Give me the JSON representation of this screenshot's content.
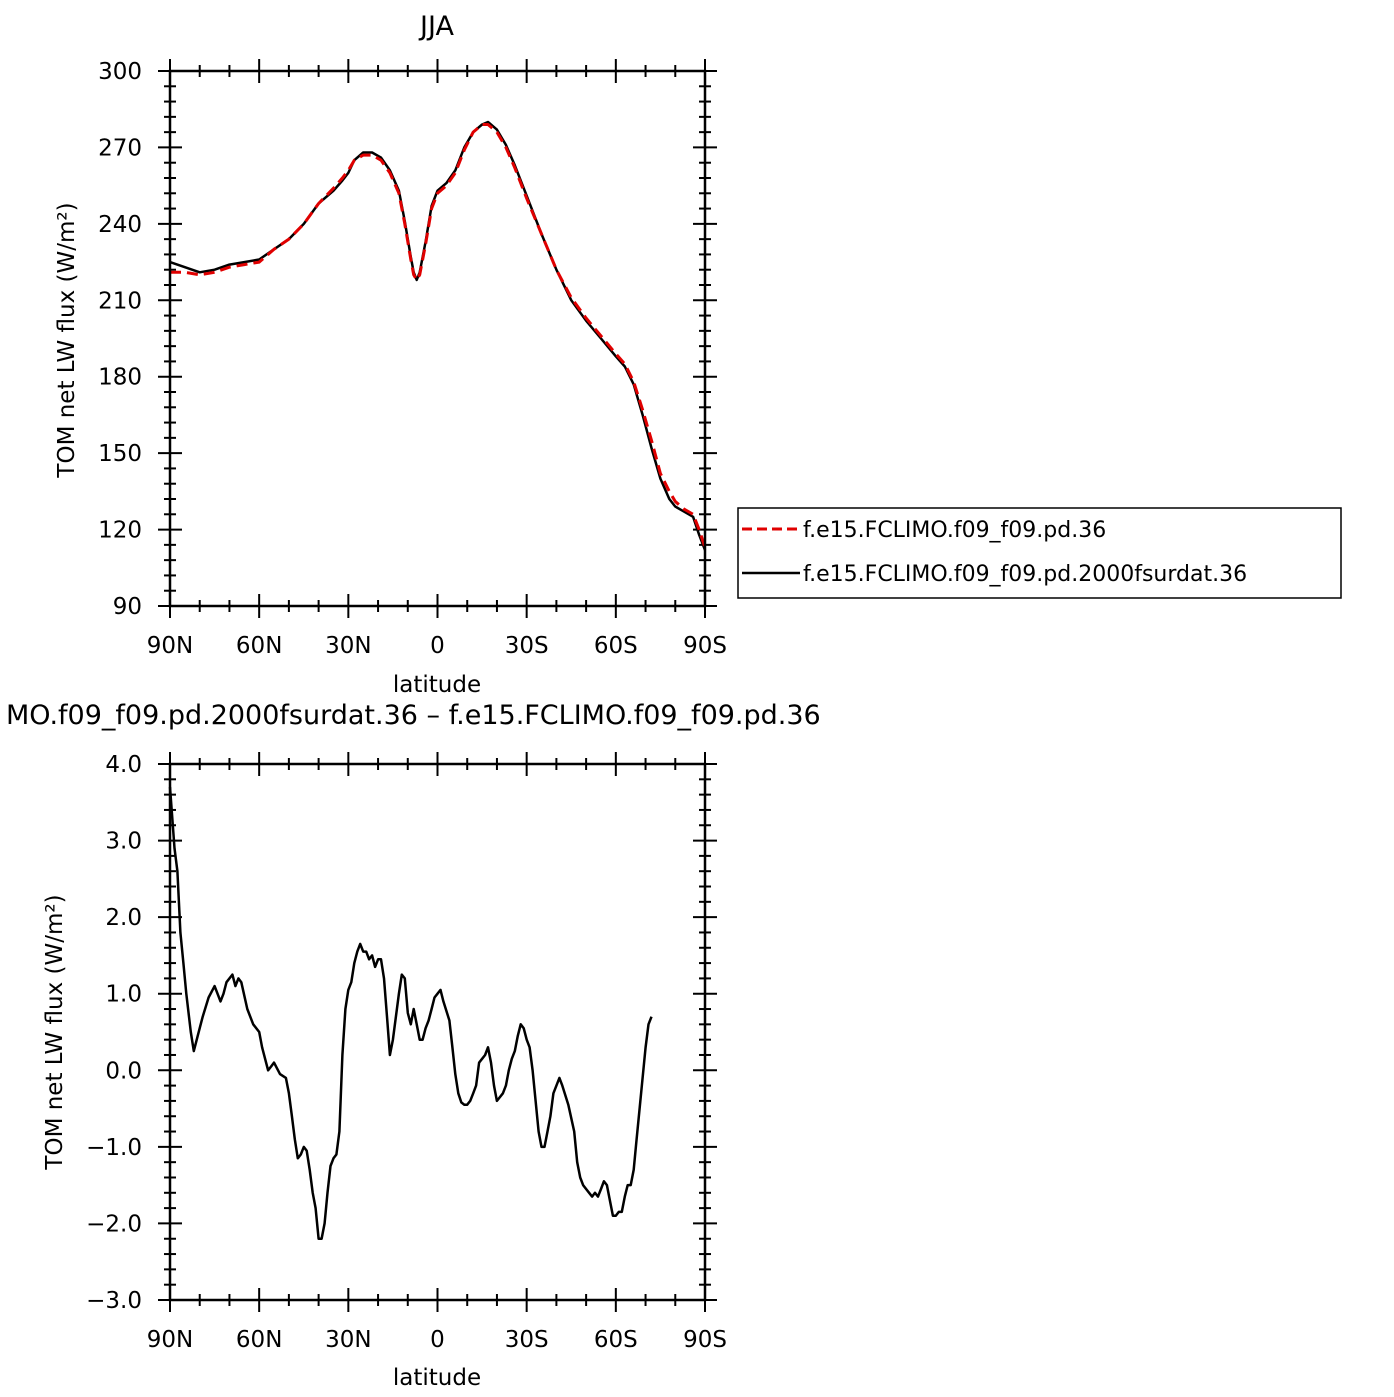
{
  "chart_data": [
    {
      "type": "line",
      "title": "JJA",
      "xlabel": "latitude",
      "ylabel": "TOM net LW flux (W/m²)",
      "xlim": [
        90,
        -90
      ],
      "ylim": [
        90,
        300
      ],
      "x_ticks": [
        90,
        60,
        30,
        0,
        -30,
        -60,
        -90
      ],
      "x_tick_labels": [
        "90N",
        "60N",
        "30N",
        "0",
        "30S",
        "60S",
        "90S"
      ],
      "y_ticks": [
        90,
        120,
        150,
        180,
        210,
        240,
        270,
        300
      ],
      "y_tick_labels": [
        "90",
        "120",
        "150",
        "180",
        "210",
        "240",
        "270",
        "300"
      ],
      "grid": false,
      "legend_position": "right, outside plot",
      "series": [
        {
          "name": "f.e15.FCLIMO.f09_f09.pd.36",
          "color": "#e00000",
          "dash": "dashed",
          "points": [
            [
              90,
              221
            ],
            [
              85,
              221
            ],
            [
              80,
              220
            ],
            [
              75,
              221
            ],
            [
              70,
              223
            ],
            [
              65,
              224
            ],
            [
              60,
              225
            ],
            [
              55,
              230
            ],
            [
              50,
              234
            ],
            [
              45,
              240
            ],
            [
              40,
              248
            ],
            [
              35,
              254
            ],
            [
              32,
              258
            ],
            [
              30,
              261
            ],
            [
              28,
              265
            ],
            [
              25,
              267
            ],
            [
              22,
              267
            ],
            [
              19,
              265
            ],
            [
              16,
              260
            ],
            [
              13,
              252
            ],
            [
              11,
              240
            ],
            [
              9,
              226
            ],
            [
              8,
              220
            ],
            [
              7,
              218
            ],
            [
              6,
              220
            ],
            [
              4,
              232
            ],
            [
              2,
              246
            ],
            [
              0,
              252
            ],
            [
              -3,
              255
            ],
            [
              -6,
              260
            ],
            [
              -9,
              269
            ],
            [
              -12,
              276
            ],
            [
              -15,
              279
            ],
            [
              -17,
              279
            ],
            [
              -20,
              276
            ],
            [
              -23,
              270
            ],
            [
              -26,
              262
            ],
            [
              -30,
              250
            ],
            [
              -35,
              236
            ],
            [
              -40,
              222
            ],
            [
              -45,
              211
            ],
            [
              -50,
              203
            ],
            [
              -55,
              196
            ],
            [
              -60,
              189
            ],
            [
              -63,
              185
            ],
            [
              -66,
              178
            ],
            [
              -69,
              167
            ],
            [
              -72,
              155
            ],
            [
              -75,
              142
            ],
            [
              -78,
              135
            ],
            [
              -80,
              131
            ],
            [
              -83,
              128
            ],
            [
              -86,
              126
            ],
            [
              -88,
              120
            ],
            [
              -90,
              113
            ]
          ]
        },
        {
          "name": "f.e15.FCLIMO.f09_f09.pd.2000fsurdat.36",
          "color": "#000000",
          "dash": "solid",
          "points": [
            [
              90,
              225
            ],
            [
              85,
              223
            ],
            [
              80,
              221
            ],
            [
              75,
              222
            ],
            [
              70,
              224
            ],
            [
              65,
              225
            ],
            [
              60,
              226
            ],
            [
              55,
              230
            ],
            [
              50,
              234
            ],
            [
              45,
              240
            ],
            [
              40,
              248
            ],
            [
              35,
              253
            ],
            [
              32,
              257
            ],
            [
              30,
              260
            ],
            [
              28,
              265
            ],
            [
              25,
              268
            ],
            [
              22,
              268
            ],
            [
              19,
              266
            ],
            [
              16,
              261
            ],
            [
              13,
              253
            ],
            [
              11,
              241
            ],
            [
              9,
              227
            ],
            [
              8,
              221
            ],
            [
              7,
              218
            ],
            [
              6,
              221
            ],
            [
              4,
              233
            ],
            [
              2,
              247
            ],
            [
              0,
              253
            ],
            [
              -3,
              256
            ],
            [
              -6,
              261
            ],
            [
              -9,
              270
            ],
            [
              -12,
              276
            ],
            [
              -15,
              279
            ],
            [
              -17,
              280
            ],
            [
              -20,
              277
            ],
            [
              -23,
              271
            ],
            [
              -26,
              263
            ],
            [
              -30,
              251
            ],
            [
              -35,
              236
            ],
            [
              -40,
              222
            ],
            [
              -45,
              210
            ],
            [
              -50,
              202
            ],
            [
              -55,
              195
            ],
            [
              -60,
              188
            ],
            [
              -63,
              184
            ],
            [
              -66,
              177
            ],
            [
              -69,
              165
            ],
            [
              -72,
              152
            ],
            [
              -75,
              140
            ],
            [
              -78,
              132
            ],
            [
              -80,
              129
            ],
            [
              -83,
              127
            ],
            [
              -86,
              125
            ],
            [
              -88,
              118
            ],
            [
              -90,
              112
            ]
          ]
        }
      ]
    },
    {
      "type": "line",
      "title": "MO.f09_f09.pd.2000fsurdat.36 – f.e15.FCLIMO.f09_f09.pd.36",
      "xlabel": "latitude",
      "ylabel": "TOM net LW flux (W/m²)",
      "xlim": [
        90,
        -90
      ],
      "ylim": [
        -3.0,
        4.0
      ],
      "x_ticks": [
        90,
        60,
        30,
        0,
        -30,
        -60,
        -90
      ],
      "x_tick_labels": [
        "90N",
        "60N",
        "30N",
        "0",
        "30S",
        "60S",
        "90S"
      ],
      "y_ticks": [
        -3,
        -2,
        -1,
        0,
        1,
        2,
        3,
        4
      ],
      "y_tick_labels": [
        "−3.0",
        "−2.0",
        "−1.0",
        "0.0",
        "1.0",
        "2.0",
        "3.0",
        "4.0"
      ],
      "grid": false,
      "series": [
        {
          "color": "#000000",
          "dash": "solid",
          "points": [
            [
              90,
              3.7
            ],
            [
              88.5,
              2.9
            ],
            [
              87.5,
              2.6
            ],
            [
              86.5,
              1.8
            ],
            [
              85.5,
              1.4
            ],
            [
              84.5,
              1.0
            ],
            [
              83,
              0.5
            ],
            [
              82,
              0.25
            ],
            [
              80,
              0.55
            ],
            [
              79,
              0.7
            ],
            [
              77,
              0.95
            ],
            [
              75,
              1.1
            ],
            [
              73,
              0.9
            ],
            [
              72,
              1.0
            ],
            [
              71,
              1.15
            ],
            [
              69,
              1.25
            ],
            [
              68,
              1.1
            ],
            [
              67,
              1.2
            ],
            [
              66,
              1.15
            ],
            [
              64,
              0.8
            ],
            [
              62,
              0.6
            ],
            [
              60,
              0.5
            ],
            [
              59,
              0.3
            ],
            [
              57,
              0.0
            ],
            [
              56,
              0.05
            ],
            [
              55,
              0.1
            ],
            [
              53,
              -0.05
            ],
            [
              51,
              -0.1
            ],
            [
              50,
              -0.3
            ],
            [
              49,
              -0.6
            ],
            [
              48,
              -0.9
            ],
            [
              47,
              -1.15
            ],
            [
              46,
              -1.1
            ],
            [
              45,
              -1.0
            ],
            [
              44,
              -1.05
            ],
            [
              43,
              -1.3
            ],
            [
              42,
              -1.6
            ],
            [
              41,
              -1.8
            ],
            [
              40,
              -2.2
            ],
            [
              39,
              -2.2
            ],
            [
              38,
              -2.0
            ],
            [
              37,
              -1.6
            ],
            [
              36,
              -1.25
            ],
            [
              35,
              -1.15
            ],
            [
              34,
              -1.1
            ],
            [
              33,
              -0.8
            ],
            [
              32,
              0.2
            ],
            [
              31,
              0.8
            ],
            [
              30,
              1.05
            ],
            [
              29,
              1.15
            ],
            [
              28,
              1.4
            ],
            [
              27,
              1.55
            ],
            [
              26,
              1.65
            ],
            [
              25,
              1.55
            ],
            [
              24,
              1.55
            ],
            [
              23,
              1.45
            ],
            [
              22,
              1.5
            ],
            [
              21,
              1.35
            ],
            [
              20,
              1.45
            ],
            [
              19,
              1.45
            ],
            [
              18,
              1.2
            ],
            [
              17,
              0.7
            ],
            [
              16,
              0.2
            ],
            [
              15,
              0.4
            ],
            [
              14,
              0.7
            ],
            [
              13,
              1.0
            ],
            [
              12,
              1.25
            ],
            [
              11,
              1.2
            ],
            [
              10,
              0.75
            ],
            [
              9,
              0.6
            ],
            [
              8,
              0.8
            ],
            [
              7,
              0.6
            ],
            [
              6,
              0.4
            ],
            [
              5,
              0.4
            ],
            [
              4,
              0.55
            ],
            [
              3,
              0.65
            ],
            [
              2,
              0.8
            ],
            [
              1,
              0.95
            ],
            [
              0,
              1.0
            ],
            [
              -1,
              1.05
            ],
            [
              -2,
              0.9
            ],
            [
              -4,
              0.65
            ],
            [
              -5,
              0.3
            ],
            [
              -6,
              -0.05
            ],
            [
              -7,
              -0.3
            ],
            [
              -8,
              -0.42
            ],
            [
              -9,
              -0.45
            ],
            [
              -10,
              -0.45
            ],
            [
              -11,
              -0.4
            ],
            [
              -12,
              -0.3
            ],
            [
              -13,
              -0.2
            ],
            [
              -14,
              0.1
            ],
            [
              -15,
              0.15
            ],
            [
              -16,
              0.2
            ],
            [
              -17,
              0.3
            ],
            [
              -18,
              0.1
            ],
            [
              -19,
              -0.2
            ],
            [
              -20,
              -0.4
            ],
            [
              -21,
              -0.35
            ],
            [
              -22,
              -0.3
            ],
            [
              -23,
              -0.2
            ],
            [
              -24,
              0.0
            ],
            [
              -25,
              0.15
            ],
            [
              -26,
              0.25
            ],
            [
              -27,
              0.45
            ],
            [
              -28,
              0.6
            ],
            [
              -29,
              0.55
            ],
            [
              -30,
              0.4
            ],
            [
              -31,
              0.3
            ],
            [
              -32,
              0.0
            ],
            [
              -33,
              -0.4
            ],
            [
              -34,
              -0.8
            ],
            [
              -35,
              -1.0
            ],
            [
              -36,
              -1.0
            ],
            [
              -37,
              -0.8
            ],
            [
              -38,
              -0.6
            ],
            [
              -39,
              -0.3
            ],
            [
              -41,
              -0.1
            ],
            [
              -42,
              -0.2
            ],
            [
              -44,
              -0.45
            ],
            [
              -46,
              -0.8
            ],
            [
              -47,
              -1.2
            ],
            [
              -48,
              -1.4
            ],
            [
              -49,
              -1.5
            ],
            [
              -50,
              -1.55
            ],
            [
              -51,
              -1.6
            ],
            [
              -52,
              -1.65
            ],
            [
              -53,
              -1.6
            ],
            [
              -54,
              -1.65
            ],
            [
              -55,
              -1.55
            ],
            [
              -56,
              -1.45
            ],
            [
              -57,
              -1.5
            ],
            [
              -58,
              -1.7
            ],
            [
              -59,
              -1.9
            ],
            [
              -60,
              -1.9
            ],
            [
              -61,
              -1.85
            ],
            [
              -62,
              -1.85
            ],
            [
              -63,
              -1.65
            ],
            [
              -64,
              -1.5
            ],
            [
              -65,
              -1.5
            ],
            [
              -66,
              -1.3
            ],
            [
              -67,
              -0.9
            ],
            [
              -68,
              -0.5
            ],
            [
              -69,
              -0.1
            ],
            [
              -70,
              0.3
            ],
            [
              -71,
              0.6
            ],
            [
              -72,
              0.7
            ]
          ]
        }
      ]
    }
  ]
}
